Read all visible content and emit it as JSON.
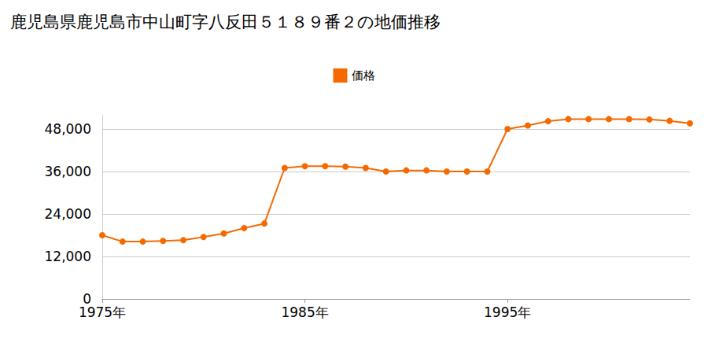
{
  "chart_data": {
    "type": "line",
    "title": "鹿児島県鹿児島市中山町字八反田５１８９番２の地価推移",
    "series": [
      {
        "name": "価格",
        "color": "#f56a00",
        "marker": "circle",
        "x": [
          1975,
          1976,
          1977,
          1978,
          1979,
          1980,
          1981,
          1982,
          1983,
          1984,
          1985,
          1986,
          1987,
          1988,
          1989,
          1990,
          1991,
          1992,
          1993,
          1994,
          1995,
          1996,
          1997,
          1998,
          1999,
          2000,
          2001,
          2002,
          2003,
          2004
        ],
        "values": [
          18000,
          16200,
          16200,
          16400,
          16600,
          17500,
          18500,
          20000,
          21300,
          37000,
          37500,
          37500,
          37400,
          37000,
          36000,
          36300,
          36300,
          36000,
          36000,
          36000,
          48000,
          49000,
          50200,
          50800,
          50800,
          50800,
          50800,
          50700,
          50300,
          49600
        ]
      }
    ],
    "xlim": [
      1975,
      2004
    ],
    "xticks": [
      {
        "value": 1975,
        "label": "1975年"
      },
      {
        "value": 1985,
        "label": "1985年"
      },
      {
        "value": 1995,
        "label": "1995年"
      }
    ],
    "ylim": [
      0,
      52000
    ],
    "yticks": [
      0,
      {
        "value": 12000,
        "label": "12,000"
      },
      {
        "value": 24000,
        "label": "24,000"
      },
      {
        "value": 36000,
        "label": "36,000"
      },
      {
        "value": 48000,
        "label": "48,000"
      }
    ],
    "grid": true,
    "legend": "top"
  }
}
